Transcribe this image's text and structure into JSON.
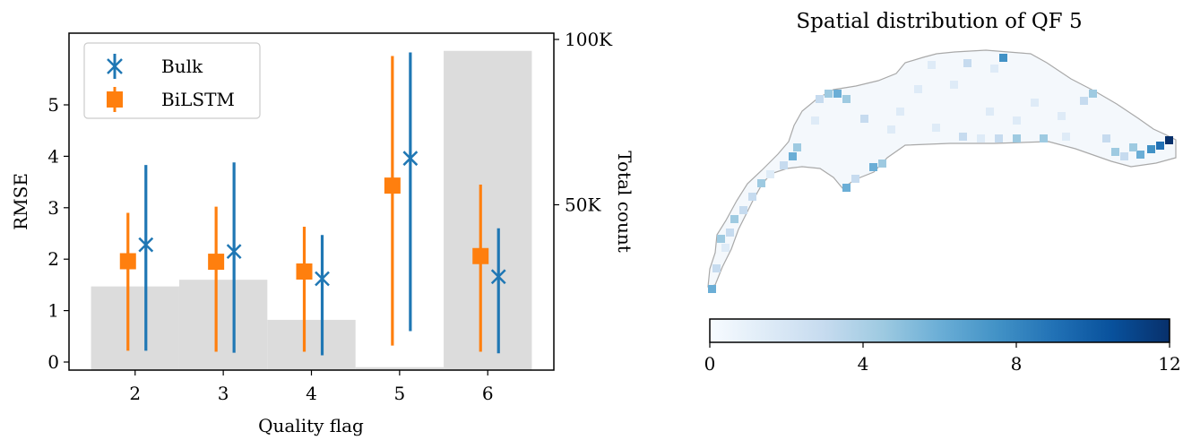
{
  "chart_data": [
    {
      "type": "bar",
      "title": "",
      "xlabel": "Quality flag",
      "ylabel": "RMSE",
      "y2label": "Total count",
      "categories": [
        "2",
        "3",
        "4",
        "5",
        "6"
      ],
      "ylim": [
        -0.15,
        6.4
      ],
      "yticks": [
        "0",
        "1",
        "2",
        "3",
        "4",
        "5"
      ],
      "y2ticks": [
        "50K",
        "100K"
      ],
      "y2_values": [
        50000,
        100000
      ],
      "legend_position": "upper-left",
      "grid": false,
      "count_bars": {
        "color": "#dcdcdc",
        "heights_rmse_units": [
          1.47,
          1.6,
          0.82,
          -0.1,
          6.05
        ]
      },
      "series": [
        {
          "name": "Bulk",
          "marker": "x",
          "color": "#1f77b4",
          "values": [
            2.28,
            2.15,
            1.62,
            3.96,
            1.66
          ],
          "lower": [
            0.22,
            0.18,
            0.13,
            0.6,
            0.17
          ],
          "upper": [
            3.83,
            3.88,
            2.47,
            6.02,
            2.6
          ]
        },
        {
          "name": "BiLSTM",
          "marker": "square",
          "color": "#ff7f0e",
          "values": [
            1.96,
            1.95,
            1.76,
            3.43,
            2.06
          ],
          "lower": [
            0.22,
            0.2,
            0.2,
            0.32,
            0.2
          ],
          "upper": [
            2.9,
            3.02,
            2.63,
            5.95,
            3.45
          ]
        }
      ]
    },
    {
      "type": "heatmap",
      "title": "Spatial distribution of QF 5",
      "colormap": "Blues",
      "colorbar_range": [
        0,
        12
      ],
      "colorbar_ticks": [
        "0",
        "4",
        "8",
        "12"
      ]
    }
  ]
}
